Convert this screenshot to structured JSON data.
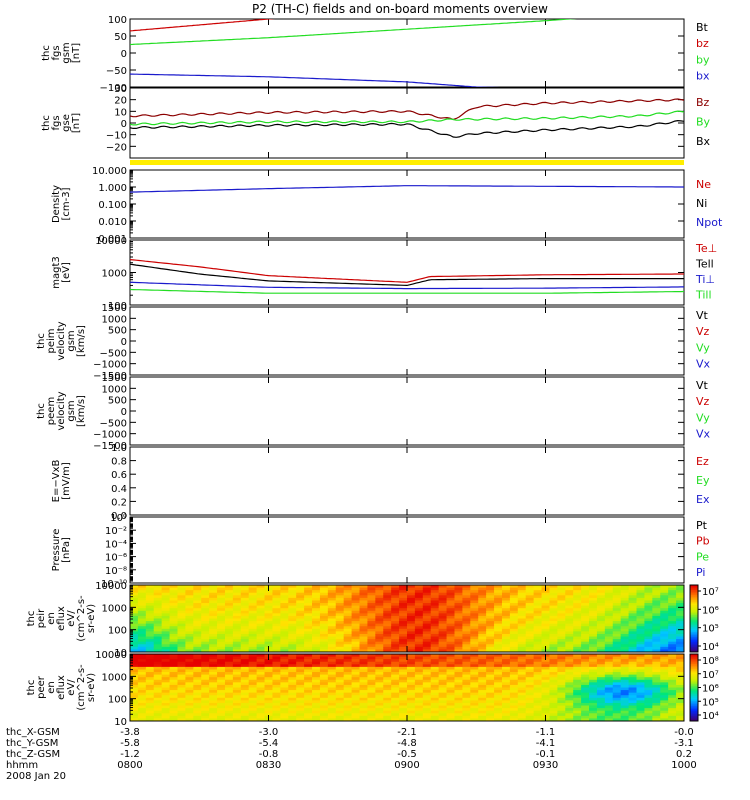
{
  "title": "P2 (TH-C) fields and on-board moments overview",
  "colors": {
    "black": "#000000",
    "red": "#cc0000",
    "green": "#22dd22",
    "blue": "#1a1acc",
    "darkred": "#8b0000",
    "yellow": "#ffee00"
  },
  "panels": [
    {
      "id": "fgs-gsm",
      "ylabel": [
        "thc",
        "fgs",
        "gsm",
        "[nT]"
      ],
      "ylim": [
        -100,
        100
      ],
      "scale": "linear",
      "yticks": [
        100,
        50,
        0,
        -50,
        -100
      ],
      "ticklabels": [
        "100",
        "50",
        "0",
        "−50",
        "−100"
      ],
      "legend": [
        {
          "label": "Bt",
          "color": "#000000"
        },
        {
          "label": "bz",
          "color": "#cc0000"
        },
        {
          "label": "by",
          "color": "#22dd22"
        },
        {
          "label": "bx",
          "color": "#1a1acc"
        }
      ]
    },
    {
      "id": "fgs-gse",
      "ylabel": [
        "thc",
        "fgs",
        "gse",
        "[nT]"
      ],
      "ylim": [
        -30,
        30
      ],
      "scale": "linear",
      "yticks": [
        30,
        20,
        10,
        0,
        -10,
        -20
      ],
      "ticklabels": [
        "30",
        "20",
        "10",
        "0",
        "−10",
        "−20"
      ],
      "legend": [
        {
          "label": "Bz",
          "color": "#8b0000"
        },
        {
          "label": "By",
          "color": "#22dd22"
        },
        {
          "label": "Bx",
          "color": "#000000"
        }
      ]
    },
    {
      "id": "density",
      "ylabel": [
        "Density",
        "[cm-3]"
      ],
      "ylim": [
        0.001,
        10
      ],
      "scale": "log",
      "yticks": [
        10,
        1,
        0.1,
        0.01,
        0.001
      ],
      "ticklabels": [
        "10.000",
        "1.000",
        "0.100",
        "0.010",
        "0.001"
      ],
      "legend": [
        {
          "label": "Ne",
          "color": "#cc0000"
        },
        {
          "label": "Ni",
          "color": "#000000"
        },
        {
          "label": "Npot",
          "color": "#1a1acc"
        }
      ]
    },
    {
      "id": "temperature",
      "ylabel": [
        "magt3",
        "[eV]"
      ],
      "ylim": [
        100,
        10000
      ],
      "scale": "log",
      "yticks": [
        10000,
        1000,
        100
      ],
      "ticklabels": [
        "10000",
        "1000",
        "100"
      ],
      "legend": [
        {
          "label": "Te⊥",
          "color": "#cc0000"
        },
        {
          "label": "Tell",
          "color": "#000000"
        },
        {
          "label": "Ti⊥",
          "color": "#1a1acc"
        },
        {
          "label": "Till",
          "color": "#22dd22"
        }
      ]
    },
    {
      "id": "peim-velocity",
      "ylabel": [
        "thc",
        "peim",
        "velocity",
        "gsm",
        "[km/s]"
      ],
      "ylim": [
        -1500,
        1500
      ],
      "scale": "linear",
      "yticks": [
        1500,
        1000,
        500,
        0,
        -500,
        -1000,
        -1500
      ],
      "ticklabels": [
        "1500",
        "1000",
        "500",
        "0",
        "−500",
        "−1000",
        "−1500"
      ],
      "legend": [
        {
          "label": "Vt",
          "color": "#000000"
        },
        {
          "label": "Vz",
          "color": "#cc0000"
        },
        {
          "label": "Vy",
          "color": "#22dd22"
        },
        {
          "label": "Vx",
          "color": "#1a1acc"
        }
      ]
    },
    {
      "id": "peem-velocity",
      "ylabel": [
        "thc",
        "peem",
        "velocity",
        "gsm",
        "[km/s]"
      ],
      "ylim": [
        -1500,
        1500
      ],
      "scale": "linear",
      "yticks": [
        1500,
        1000,
        500,
        0,
        -500,
        -1000,
        -1500
      ],
      "ticklabels": [
        "1500",
        "1000",
        "500",
        "0",
        "−500",
        "−1000",
        "−1500"
      ],
      "legend": [
        {
          "label": "Vt",
          "color": "#000000"
        },
        {
          "label": "Vz",
          "color": "#cc0000"
        },
        {
          "label": "Vy",
          "color": "#22dd22"
        },
        {
          "label": "Vx",
          "color": "#1a1acc"
        }
      ]
    },
    {
      "id": "efield",
      "ylabel": [
        "E=−VxB",
        "[mV/m]"
      ],
      "ylim": [
        0,
        1
      ],
      "scale": "linear",
      "yticks": [
        1.0,
        0.8,
        0.6,
        0.4,
        0.2,
        0.0
      ],
      "ticklabels": [
        "1.0",
        "0.8",
        "0.6",
        "0.4",
        "0.2",
        "0.0"
      ],
      "legend": [
        {
          "label": "Ez",
          "color": "#cc0000"
        },
        {
          "label": "Ey",
          "color": "#22dd22"
        },
        {
          "label": "Ex",
          "color": "#1a1acc"
        }
      ]
    },
    {
      "id": "pressure",
      "ylabel": [
        "Pressure",
        "[nPa]"
      ],
      "ylim": [
        1e-10,
        1
      ],
      "scale": "log",
      "yticks": [
        1,
        0.01,
        0.0001,
        1e-06,
        1e-08,
        1e-10
      ],
      "ticklabels": [
        "10⁰",
        "10⁻²",
        "10⁻⁴",
        "10⁻⁶",
        "10⁻⁸",
        "10⁻¹⁰"
      ],
      "legend": [
        {
          "label": "Pt",
          "color": "#000000"
        },
        {
          "label": "Pb",
          "color": "#cc0000"
        },
        {
          "label": "Pe",
          "color": "#22dd22"
        },
        {
          "label": "Pi",
          "color": "#1a1acc"
        }
      ]
    },
    {
      "id": "peir-spec",
      "ylabel": [
        "thc",
        "peir",
        "en",
        "eflux",
        "eV/",
        "(cm^2-s-",
        "sr-eV)"
      ],
      "ylim": [
        10,
        10000
      ],
      "scale": "log",
      "yticks": [
        10000,
        1000,
        100,
        10
      ],
      "ticklabels": [
        "10000",
        "1000",
        "100",
        "10"
      ],
      "colorbar": [
        "10⁷",
        "10⁶",
        "10⁵",
        "10⁴"
      ]
    },
    {
      "id": "peer-spec",
      "ylabel": [
        "thc",
        "peer",
        "en",
        "eflux",
        "eV/",
        "(cm^2-s-",
        "sr-eV)"
      ],
      "ylim": [
        10,
        10000
      ],
      "scale": "log",
      "yticks": [
        10000,
        1000,
        100,
        10
      ],
      "ticklabels": [
        "10000",
        "1000",
        "100",
        "10"
      ],
      "colorbar": [
        "10⁸",
        "10⁷",
        "10⁶",
        "10⁵",
        "10⁴"
      ]
    }
  ],
  "xaxis": {
    "rows": [
      {
        "label": "thc_X-GSM",
        "values": [
          "-3.8",
          "-3.0",
          "-2.1",
          "-1.1",
          "-0.0"
        ]
      },
      {
        "label": "thc_Y-GSM",
        "values": [
          "-5.8",
          "-5.4",
          "-4.8",
          "-4.1",
          "-3.1"
        ]
      },
      {
        "label": "thc_Z-GSM",
        "values": [
          "-1.2",
          "-0.8",
          "-0.5",
          "-0.1",
          "0.2"
        ]
      },
      {
        "label": "hhmm",
        "values": [
          "0800",
          "0830",
          "0900",
          "0930",
          "1000"
        ]
      }
    ],
    "date": "2008 Jan 20"
  },
  "chart_data": [
    {
      "type": "line",
      "title": "P2 (TH-C) fields and on-board moments overview",
      "xlabel": "hhmm",
      "x": [
        "0800",
        "0830",
        "0900",
        "0930",
        "1000"
      ],
      "ylabel": "thc fgs gsm [nT]",
      "ylim": [
        -100,
        100
      ],
      "series": [
        {
          "name": "bz",
          "x": [
            "0800",
            "0830",
            "0855"
          ],
          "values": [
            65,
            100,
            130
          ]
        },
        {
          "name": "by",
          "x": [
            "0800",
            "0830",
            "0900",
            "0930",
            "0945"
          ],
          "values": [
            25,
            45,
            70,
            95,
            110
          ]
        },
        {
          "name": "bx",
          "x": [
            "0800",
            "0830",
            "0900",
            "0915",
            "0930"
          ],
          "values": [
            -62,
            -70,
            -85,
            -100,
            -105
          ]
        }
      ]
    },
    {
      "type": "line",
      "xlabel": "hhmm",
      "x": [
        "0800",
        "0830",
        "0900",
        "0930",
        "1000"
      ],
      "ylabel": "thc fgs gse [nT]",
      "ylim": [
        -30,
        30
      ],
      "series": [
        {
          "name": "Bz",
          "x": [
            "0800",
            "0830",
            "0900",
            "0910",
            "0915",
            "0930",
            "0950",
            "1000"
          ],
          "values": [
            6,
            9,
            10,
            3,
            14,
            17,
            19,
            20
          ]
        },
        {
          "name": "By",
          "x": [
            "0800",
            "0830",
            "0900",
            "0910",
            "0930",
            "0950",
            "1000"
          ],
          "values": [
            -1,
            1,
            1,
            3,
            4,
            6,
            10
          ]
        },
        {
          "name": "Bx",
          "x": [
            "0800",
            "0830",
            "0900",
            "0910",
            "0915",
            "0930",
            "0950",
            "1000"
          ],
          "values": [
            -4,
            -2,
            -1,
            -12,
            -9,
            -6,
            -3,
            2
          ]
        }
      ]
    },
    {
      "type": "line",
      "xlabel": "hhmm",
      "x": [
        "0800",
        "0830",
        "0900",
        "0930",
        "1000"
      ],
      "ylabel": "Density [cm-3]",
      "ylim": [
        0.001,
        10
      ],
      "yscale": "log",
      "series": [
        {
          "name": "Npot",
          "x": [
            "0800",
            "0830",
            "0900",
            "0930",
            "1000"
          ],
          "values": [
            0.5,
            0.8,
            1.2,
            1.1,
            1.0
          ]
        }
      ]
    },
    {
      "type": "line",
      "xlabel": "hhmm",
      "x": [
        "0800",
        "0830",
        "0900",
        "0930",
        "1000"
      ],
      "ylabel": "magt3 [eV]",
      "ylim": [
        100,
        10000
      ],
      "yscale": "log",
      "series": [
        {
          "name": "Te⊥",
          "x": [
            "0800",
            "0815",
            "0830",
            "0900",
            "0905",
            "0930",
            "1000"
          ],
          "values": [
            2500,
            1500,
            800,
            500,
            750,
            850,
            900
          ]
        },
        {
          "name": "Tell",
          "x": [
            "0800",
            "0815",
            "0830",
            "0900",
            "0905",
            "0930",
            "1000"
          ],
          "values": [
            1800,
            900,
            550,
            400,
            600,
            650,
            650
          ]
        },
        {
          "name": "Ti⊥",
          "x": [
            "0800",
            "0830",
            "0900",
            "0930",
            "1000"
          ],
          "values": [
            500,
            350,
            320,
            330,
            360
          ]
        },
        {
          "name": "Till",
          "x": [
            "0800",
            "0830",
            "0900",
            "0930",
            "1000"
          ],
          "values": [
            300,
            230,
            230,
            230,
            260
          ]
        }
      ]
    },
    {
      "type": "heatmap",
      "ylabel": "thc peir en eflux eV/(cm^2-s-sr-eV)",
      "ylim": [
        10,
        10000
      ],
      "yscale": "log",
      "xlabel": "hhmm",
      "x": [
        "0800",
        "0830",
        "0900",
        "0930",
        "1000"
      ]
    },
    {
      "type": "heatmap",
      "ylabel": "thc peer en eflux eV/(cm^2-s-sr-eV)",
      "ylim": [
        10,
        10000
      ],
      "yscale": "log",
      "xlabel": "hhmm",
      "x": [
        "0800",
        "0830",
        "0900",
        "0930",
        "1000"
      ]
    }
  ]
}
